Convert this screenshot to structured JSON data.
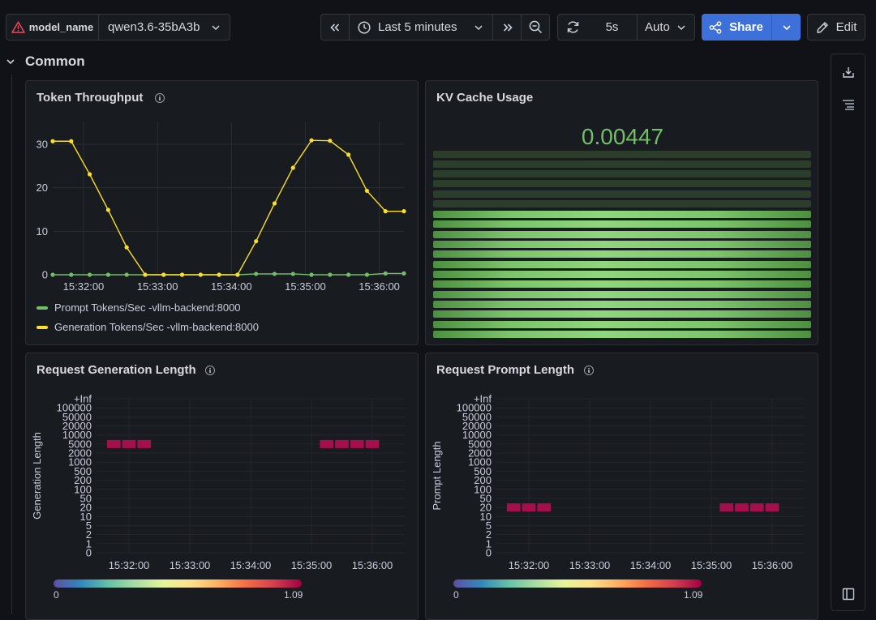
{
  "header": {
    "variable": {
      "label": "model_name",
      "value": "qwen3.6-35bA3b"
    },
    "time_range": "Last 5 minutes",
    "refresh_interval": "5s",
    "refresh_mode": "Auto",
    "share_label": "Share",
    "edit_label": "Edit"
  },
  "row": {
    "title": "Common"
  },
  "panels": {
    "throughput": {
      "title": "Token Throughput",
      "legend": [
        {
          "name": "Prompt Tokens/Sec -vllm-backend:8000",
          "color": "#73bf69"
        },
        {
          "name": "Generation Tokens/Sec -vllm-backend:8000",
          "color": "#fade2a"
        }
      ]
    },
    "kv_cache": {
      "title": "KV Cache Usage",
      "value": "0.00447",
      "color": "#73bf69"
    },
    "gen_length": {
      "title": "Request Generation Length",
      "ylabel": "Generation Length",
      "scale_min": "0",
      "scale_max": "1.09"
    },
    "prompt_length": {
      "title": "Request Prompt Length",
      "ylabel": "Prompt Length",
      "scale_min": "0",
      "scale_max": "1.09"
    }
  },
  "chart_data": [
    {
      "type": "line",
      "title": "Token Throughput",
      "x": [
        "15:31:35",
        "15:31:50",
        "15:32:05",
        "15:32:20",
        "15:32:35",
        "15:32:50",
        "15:33:05",
        "15:33:20",
        "15:33:35",
        "15:33:50",
        "15:34:05",
        "15:34:20",
        "15:34:35",
        "15:34:50",
        "15:35:05",
        "15:35:20",
        "15:35:35",
        "15:35:50",
        "15:36:05",
        "15:36:20"
      ],
      "xticks": [
        "15:32:00",
        "15:33:00",
        "15:34:00",
        "15:35:00",
        "15:36:00"
      ],
      "yticks": [
        "0",
        "10",
        "20",
        "30"
      ],
      "ylim": [
        0,
        30
      ],
      "series": [
        {
          "name": "Prompt Tokens/Sec -vllm-backend:8000",
          "color": "#73bf69",
          "values": [
            0,
            0,
            0,
            0,
            0,
            0,
            0,
            0,
            0,
            0,
            0,
            0.2,
            0.2,
            0.2,
            0,
            0,
            0,
            0,
            0.3,
            0.3
          ]
        },
        {
          "name": "Generation Tokens/Sec -vllm-backend:8000",
          "color": "#fade2a",
          "values": [
            30.7,
            30.7,
            23.1,
            14.9,
            6.3,
            0,
            0,
            0,
            0,
            0,
            0,
            7.7,
            16.4,
            24.6,
            30.9,
            30.8,
            27.6,
            19.3,
            14.6,
            14.6
          ]
        }
      ]
    },
    {
      "type": "heatmap",
      "title": "Request Generation Length",
      "ylabel": "Generation Length",
      "ybuckets": [
        "0",
        "1",
        "2",
        "5",
        "10",
        "20",
        "50",
        "100",
        "200",
        "500",
        "1000",
        "2000",
        "5000",
        "10000",
        "20000",
        "50000",
        "100000",
        "+Inf"
      ],
      "xticks": [
        "15:32:00",
        "15:33:00",
        "15:34:00",
        "15:35:00",
        "15:36:00"
      ],
      "cells": [
        {
          "x": "15:31:45",
          "bucket": "5000"
        },
        {
          "x": "15:32:00",
          "bucket": "5000"
        },
        {
          "x": "15:32:15",
          "bucket": "5000"
        },
        {
          "x": "15:35:15",
          "bucket": "5000"
        },
        {
          "x": "15:35:30",
          "bucket": "5000"
        },
        {
          "x": "15:35:45",
          "bucket": "5000"
        },
        {
          "x": "15:36:00",
          "bucket": "5000"
        }
      ],
      "color_scale": {
        "min": 0,
        "max": 1.09
      }
    },
    {
      "type": "heatmap",
      "title": "Request Prompt Length",
      "ylabel": "Prompt Length",
      "ybuckets": [
        "0",
        "1",
        "2",
        "5",
        "10",
        "20",
        "50",
        "100",
        "200",
        "500",
        "1000",
        "2000",
        "5000",
        "10000",
        "20000",
        "50000",
        "100000",
        "+Inf"
      ],
      "xticks": [
        "15:32:00",
        "15:33:00",
        "15:34:00",
        "15:35:00",
        "15:36:00"
      ],
      "cells": [
        {
          "x": "15:31:45",
          "bucket": "20"
        },
        {
          "x": "15:32:00",
          "bucket": "20"
        },
        {
          "x": "15:32:15",
          "bucket": "20"
        },
        {
          "x": "15:35:15",
          "bucket": "20"
        },
        {
          "x": "15:35:30",
          "bucket": "20"
        },
        {
          "x": "15:35:45",
          "bucket": "20"
        },
        {
          "x": "15:36:00",
          "bucket": "20"
        }
      ],
      "color_scale": {
        "min": 0,
        "max": 1.09
      }
    }
  ]
}
